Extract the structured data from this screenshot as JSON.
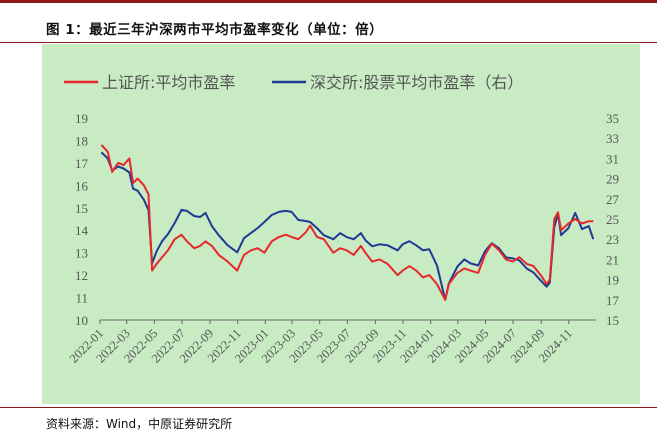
{
  "figure": {
    "title": "图 1：最近三年沪深两市平均市盈率变化（单位：倍）",
    "source": "资料来源：Wind，中原证券研究所"
  },
  "chart_data": {
    "type": "line",
    "legend_position": "top",
    "grid": false,
    "x_tick_labels": [
      "2022-01",
      "2022-03",
      "2022-05",
      "2022-07",
      "2022-09",
      "2022-11",
      "2023-01",
      "2023-03",
      "2023-05",
      "2023-07",
      "2023-09",
      "2023-11",
      "2024-01",
      "2024-03",
      "2024-05",
      "2024-07",
      "2024-09",
      "2024-11"
    ],
    "x_range": [
      "2022-01",
      "2024-12"
    ],
    "y_left": {
      "min": 10,
      "max": 19,
      "ticks": [
        10,
        11,
        12,
        13,
        14,
        15,
        16,
        17,
        18,
        19
      ]
    },
    "y_right": {
      "min": 15,
      "max": 35,
      "ticks": [
        15,
        17,
        19,
        21,
        23,
        25,
        27,
        29,
        31,
        33,
        35
      ]
    },
    "series": [
      {
        "name": "上证所:平均市盈率",
        "axis": "left",
        "color": "#e8272a",
        "points": [
          [
            "2022-01-04",
            17.8
          ],
          [
            "2022-01-18",
            17.5
          ],
          [
            "2022-01-28",
            16.6
          ],
          [
            "2022-02-10",
            17.0
          ],
          [
            "2022-02-22",
            16.9
          ],
          [
            "2022-03-07",
            17.2
          ],
          [
            "2022-03-15",
            16.1
          ],
          [
            "2022-03-25",
            16.3
          ],
          [
            "2022-04-08",
            16.0
          ],
          [
            "2022-04-18",
            15.6
          ],
          [
            "2022-04-26",
            12.2
          ],
          [
            "2022-05-06",
            12.5
          ],
          [
            "2022-05-18",
            12.8
          ],
          [
            "2022-05-31",
            13.1
          ],
          [
            "2022-06-15",
            13.6
          ],
          [
            "2022-06-30",
            13.8
          ],
          [
            "2022-07-12",
            13.5
          ],
          [
            "2022-07-28",
            13.2
          ],
          [
            "2022-08-10",
            13.3
          ],
          [
            "2022-08-22",
            13.5
          ],
          [
            "2022-09-05",
            13.3
          ],
          [
            "2022-09-20",
            12.9
          ],
          [
            "2022-10-10",
            12.6
          ],
          [
            "2022-10-31",
            12.2
          ],
          [
            "2022-11-15",
            12.9
          ],
          [
            "2022-11-30",
            13.1
          ],
          [
            "2022-12-15",
            13.2
          ],
          [
            "2022-12-30",
            13.0
          ],
          [
            "2023-01-15",
            13.5
          ],
          [
            "2023-01-31",
            13.7
          ],
          [
            "2023-02-15",
            13.8
          ],
          [
            "2023-02-28",
            13.7
          ],
          [
            "2023-03-15",
            13.6
          ],
          [
            "2023-03-31",
            13.9
          ],
          [
            "2023-04-10",
            14.2
          ],
          [
            "2023-04-25",
            13.7
          ],
          [
            "2023-05-10",
            13.6
          ],
          [
            "2023-05-31",
            13.0
          ],
          [
            "2023-06-15",
            13.2
          ],
          [
            "2023-06-30",
            13.1
          ],
          [
            "2023-07-15",
            12.9
          ],
          [
            "2023-07-31",
            13.3
          ],
          [
            "2023-08-10",
            13.0
          ],
          [
            "2023-08-25",
            12.6
          ],
          [
            "2023-09-10",
            12.7
          ],
          [
            "2023-09-28",
            12.5
          ],
          [
            "2023-10-20",
            12.0
          ],
          [
            "2023-10-31",
            12.2
          ],
          [
            "2023-11-15",
            12.4
          ],
          [
            "2023-11-30",
            12.2
          ],
          [
            "2023-12-15",
            11.9
          ],
          [
            "2023-12-29",
            12.0
          ],
          [
            "2024-01-15",
            11.6
          ],
          [
            "2024-02-02",
            10.9
          ],
          [
            "2024-02-10",
            11.6
          ],
          [
            "2024-02-29",
            12.1
          ],
          [
            "2024-03-15",
            12.3
          ],
          [
            "2024-03-29",
            12.2
          ],
          [
            "2024-04-15",
            12.1
          ],
          [
            "2024-04-30",
            12.9
          ],
          [
            "2024-05-15",
            13.4
          ],
          [
            "2024-05-31",
            13.1
          ],
          [
            "2024-06-15",
            12.7
          ],
          [
            "2024-06-30",
            12.6
          ],
          [
            "2024-07-15",
            12.8
          ],
          [
            "2024-07-31",
            12.5
          ],
          [
            "2024-08-15",
            12.4
          ],
          [
            "2024-08-31",
            12.0
          ],
          [
            "2024-09-13",
            11.6
          ],
          [
            "2024-09-20",
            11.8
          ],
          [
            "2024-09-30",
            14.5
          ],
          [
            "2024-10-08",
            14.8
          ],
          [
            "2024-10-15",
            14.0
          ],
          [
            "2024-10-31",
            14.3
          ],
          [
            "2024-11-15",
            14.5
          ],
          [
            "2024-11-30",
            14.3
          ],
          [
            "2024-12-15",
            14.4
          ],
          [
            "2024-12-25",
            14.4
          ]
        ]
      },
      {
        "name": "深交所:股票平均市盈率（右）",
        "axis": "right",
        "color": "#1f3a93",
        "points": [
          [
            "2022-01-04",
            31.6
          ],
          [
            "2022-01-18",
            31.0
          ],
          [
            "2022-01-28",
            29.8
          ],
          [
            "2022-02-10",
            30.2
          ],
          [
            "2022-02-22",
            30.0
          ],
          [
            "2022-03-07",
            29.6
          ],
          [
            "2022-03-15",
            28.0
          ],
          [
            "2022-03-25",
            27.8
          ],
          [
            "2022-04-08",
            26.9
          ],
          [
            "2022-04-18",
            25.9
          ],
          [
            "2022-04-26",
            20.6
          ],
          [
            "2022-05-06",
            21.8
          ],
          [
            "2022-05-18",
            22.8
          ],
          [
            "2022-05-31",
            23.5
          ],
          [
            "2022-06-15",
            24.6
          ],
          [
            "2022-06-30",
            25.9
          ],
          [
            "2022-07-12",
            25.8
          ],
          [
            "2022-07-28",
            25.3
          ],
          [
            "2022-08-10",
            25.2
          ],
          [
            "2022-08-22",
            25.6
          ],
          [
            "2022-09-05",
            24.3
          ],
          [
            "2022-09-20",
            23.4
          ],
          [
            "2022-10-10",
            22.4
          ],
          [
            "2022-10-31",
            21.7
          ],
          [
            "2022-11-15",
            23.1
          ],
          [
            "2022-11-30",
            23.6
          ],
          [
            "2022-12-15",
            24.1
          ],
          [
            "2022-12-30",
            24.7
          ],
          [
            "2023-01-15",
            25.4
          ],
          [
            "2023-01-31",
            25.7
          ],
          [
            "2023-02-15",
            25.8
          ],
          [
            "2023-02-28",
            25.7
          ],
          [
            "2023-03-15",
            24.9
          ],
          [
            "2023-03-31",
            24.8
          ],
          [
            "2023-04-10",
            24.7
          ],
          [
            "2023-04-25",
            24.1
          ],
          [
            "2023-05-10",
            23.4
          ],
          [
            "2023-05-31",
            23.0
          ],
          [
            "2023-06-15",
            23.6
          ],
          [
            "2023-06-30",
            23.2
          ],
          [
            "2023-07-15",
            23.0
          ],
          [
            "2023-07-31",
            23.6
          ],
          [
            "2023-08-10",
            22.9
          ],
          [
            "2023-08-25",
            22.3
          ],
          [
            "2023-09-10",
            22.5
          ],
          [
            "2023-09-28",
            22.4
          ],
          [
            "2023-10-20",
            21.9
          ],
          [
            "2023-10-31",
            22.5
          ],
          [
            "2023-11-15",
            22.8
          ],
          [
            "2023-11-30",
            22.4
          ],
          [
            "2023-12-15",
            21.9
          ],
          [
            "2023-12-29",
            22.0
          ],
          [
            "2024-01-15",
            20.4
          ],
          [
            "2024-02-02",
            17.0
          ],
          [
            "2024-02-10",
            18.6
          ],
          [
            "2024-02-29",
            20.3
          ],
          [
            "2024-03-15",
            21.0
          ],
          [
            "2024-03-29",
            20.6
          ],
          [
            "2024-04-15",
            20.4
          ],
          [
            "2024-04-30",
            21.8
          ],
          [
            "2024-05-15",
            22.6
          ],
          [
            "2024-05-31",
            22.1
          ],
          [
            "2024-06-15",
            21.2
          ],
          [
            "2024-06-30",
            21.1
          ],
          [
            "2024-07-15",
            20.9
          ],
          [
            "2024-07-31",
            20.1
          ],
          [
            "2024-08-15",
            19.7
          ],
          [
            "2024-08-31",
            18.9
          ],
          [
            "2024-09-13",
            18.3
          ],
          [
            "2024-09-20",
            18.7
          ],
          [
            "2024-09-30",
            24.2
          ],
          [
            "2024-10-08",
            25.5
          ],
          [
            "2024-10-15",
            23.4
          ],
          [
            "2024-10-31",
            24.1
          ],
          [
            "2024-11-15",
            25.6
          ],
          [
            "2024-11-30",
            24.0
          ],
          [
            "2024-12-15",
            24.3
          ],
          [
            "2024-12-25",
            23.0
          ]
        ]
      }
    ]
  }
}
